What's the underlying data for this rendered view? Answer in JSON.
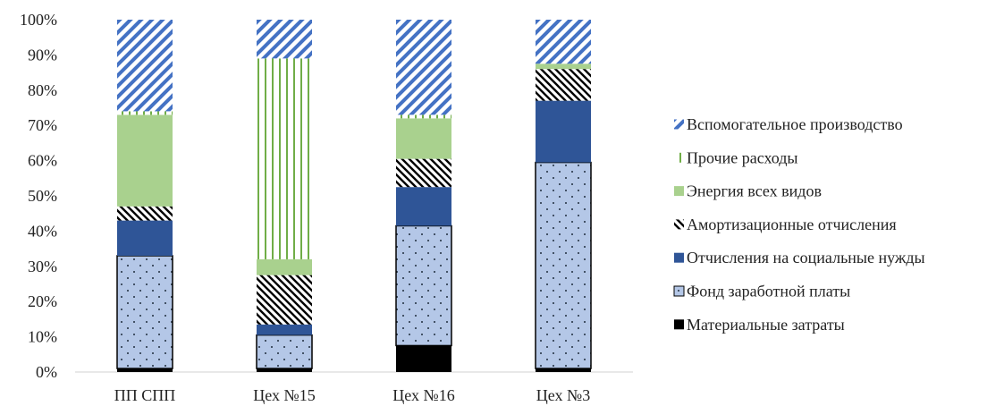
{
  "chart_data": {
    "type": "bar",
    "stacked": true,
    "percent": true,
    "categories": [
      "ПП СПП",
      "Цех №15",
      "Цех №16",
      "Цех №3"
    ],
    "ylim": [
      0,
      100
    ],
    "yticks": [
      "0%",
      "10%",
      "20%",
      "30%",
      "40%",
      "50%",
      "60%",
      "70%",
      "80%",
      "90%",
      "100%"
    ],
    "grid": false,
    "legend_position": "right",
    "series": [
      {
        "name": "Материальные затраты",
        "values": [
          1,
          1,
          7.5,
          1
        ],
        "color": "#000000",
        "pattern": "solid"
      },
      {
        "name": "Фонд заработной платы",
        "values": [
          32,
          9.5,
          34,
          58.5
        ],
        "color": "#b4c7e7",
        "pattern": "dots"
      },
      {
        "name": "Отчисления на социальные нужды",
        "values": [
          10,
          3,
          11,
          17.5
        ],
        "color": "#2f5597",
        "pattern": "solid"
      },
      {
        "name": "Амортизационные отчисления",
        "values": [
          4,
          14,
          8,
          9
        ],
        "color": "#000000",
        "pattern": "zigzag"
      },
      {
        "name": "Энергия всех видов",
        "values": [
          26,
          4.5,
          11.5,
          1.5
        ],
        "color": "#a9d18e",
        "pattern": "solid"
      },
      {
        "name": "Прочие расходы",
        "values": [
          1,
          57,
          1,
          0
        ],
        "color": "#70ad47",
        "pattern": "vertical"
      },
      {
        "name": "Вспомогательное производство",
        "values": [
          26,
          11,
          27,
          12.5
        ],
        "color": "#4472c4",
        "pattern": "diagonal"
      }
    ],
    "legend_order": [
      "Вспомогательное производство",
      "Прочие расходы",
      "Энергия всех видов",
      "Амортизационные отчисления",
      "Отчисления на социальные нужды",
      "Фонд заработной платы",
      "Материальные затраты"
    ]
  }
}
